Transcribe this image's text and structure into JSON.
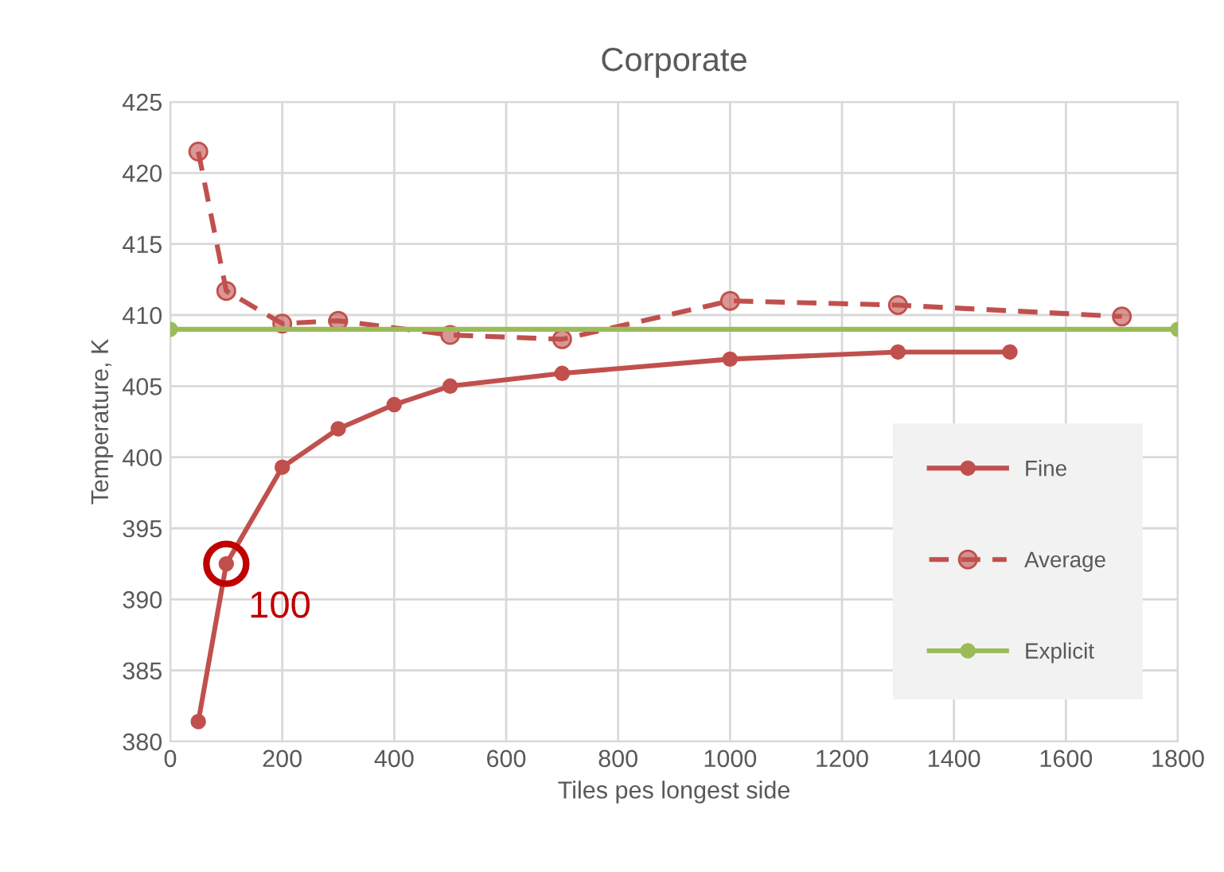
{
  "chart_data": {
    "type": "line",
    "title": "Corporate",
    "xlabel": "Tiles pes longest side",
    "ylabel": "Temperature, K",
    "series": [
      {
        "name": "Fine",
        "color": "#c0504d",
        "x": [
          50,
          100,
          200,
          300,
          400,
          500,
          700,
          1000,
          1300,
          1500
        ],
        "values": [
          381.4,
          392.5,
          399.3,
          402.0,
          403.7,
          405.0,
          405.9,
          406.9,
          407.4,
          407.4
        ],
        "line_style": "solid"
      },
      {
        "name": "Average",
        "color": "#c0504d",
        "x": [
          50,
          100,
          200,
          300,
          500,
          700,
          1000,
          1300,
          1700
        ],
        "values": [
          421.5,
          411.7,
          409.4,
          409.6,
          408.6,
          408.3,
          411.0,
          410.7,
          409.9
        ],
        "line_style": "dashed"
      },
      {
        "name": "Explicit",
        "color": "#9bbb59",
        "x": [
          0,
          1800
        ],
        "values": [
          409.0,
          409.0
        ],
        "line_style": "solid"
      }
    ],
    "annotations": [
      {
        "text": "100",
        "x": 100,
        "y": 392.5
      }
    ],
    "xlim": [
      0,
      1800
    ],
    "xticks": [
      0,
      200,
      400,
      600,
      800,
      1000,
      1200,
      1400,
      1600,
      1800
    ],
    "ylim": [
      380,
      425
    ],
    "yticks": [
      380,
      385,
      390,
      395,
      400,
      405,
      410,
      415,
      420,
      425
    ],
    "grid": true,
    "legend": "bottom right",
    "marker": "circle"
  }
}
